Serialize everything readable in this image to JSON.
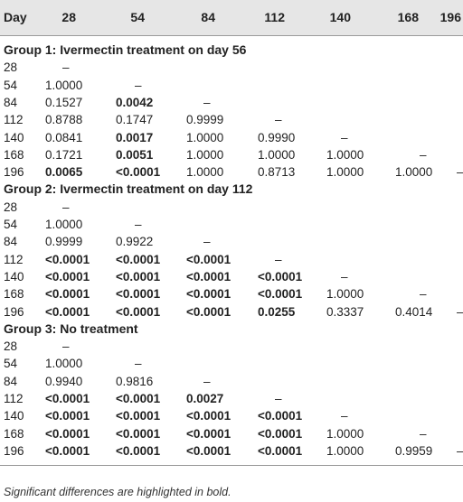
{
  "table": {
    "header": [
      "Day",
      "28",
      "54",
      "84",
      "112",
      "140",
      "168",
      "196"
    ],
    "groups": [
      {
        "title": "Group 1: Ivermectin treatment on day 56",
        "rows": [
          {
            "day": "28",
            "cells": [
              {
                "v": "–"
              }
            ]
          },
          {
            "day": "54",
            "cells": [
              {
                "v": "1.0000"
              },
              {
                "v": "–"
              }
            ]
          },
          {
            "day": "84",
            "cells": [
              {
                "v": "0.1527"
              },
              {
                "v": "0.0042",
                "b": true
              },
              {
                "v": "–"
              }
            ]
          },
          {
            "day": "112",
            "cells": [
              {
                "v": "0.8788"
              },
              {
                "v": "0.1747"
              },
              {
                "v": "0.9999"
              },
              {
                "v": "–"
              }
            ]
          },
          {
            "day": "140",
            "cells": [
              {
                "v": "0.0841"
              },
              {
                "v": "0.0017",
                "b": true
              },
              {
                "v": "1.0000"
              },
              {
                "v": "0.9990"
              },
              {
                "v": "–"
              }
            ]
          },
          {
            "day": "168",
            "cells": [
              {
                "v": "0.1721"
              },
              {
                "v": "0.0051",
                "b": true
              },
              {
                "v": "1.0000"
              },
              {
                "v": "1.0000"
              },
              {
                "v": "1.0000"
              },
              {
                "v": "–"
              }
            ]
          },
          {
            "day": "196",
            "cells": [
              {
                "v": "0.0065",
                "b": true
              },
              {
                "v": "<0.0001",
                "b": true
              },
              {
                "v": "1.0000"
              },
              {
                "v": "0.8713"
              },
              {
                "v": "1.0000"
              },
              {
                "v": "1.0000"
              },
              {
                "v": "–"
              }
            ]
          }
        ]
      },
      {
        "title": "Group 2: Ivermectin treatment on day 112",
        "rows": [
          {
            "day": "28",
            "cells": [
              {
                "v": "–"
              }
            ]
          },
          {
            "day": "54",
            "cells": [
              {
                "v": "1.0000"
              },
              {
                "v": "–"
              }
            ]
          },
          {
            "day": "84",
            "cells": [
              {
                "v": "0.9999"
              },
              {
                "v": "0.9922"
              },
              {
                "v": "–"
              }
            ]
          },
          {
            "day": "112",
            "cells": [
              {
                "v": "<0.0001",
                "b": true
              },
              {
                "v": "<0.0001",
                "b": true
              },
              {
                "v": "<0.0001",
                "b": true
              },
              {
                "v": "–"
              }
            ]
          },
          {
            "day": "140",
            "cells": [
              {
                "v": "<0.0001",
                "b": true
              },
              {
                "v": "<0.0001",
                "b": true
              },
              {
                "v": "<0.0001",
                "b": true
              },
              {
                "v": "<0.0001",
                "b": true
              },
              {
                "v": "–"
              }
            ]
          },
          {
            "day": "168",
            "cells": [
              {
                "v": "<0.0001",
                "b": true
              },
              {
                "v": "<0.0001",
                "b": true
              },
              {
                "v": "<0.0001",
                "b": true
              },
              {
                "v": "<0.0001",
                "b": true
              },
              {
                "v": "1.0000"
              },
              {
                "v": "–"
              }
            ]
          },
          {
            "day": "196",
            "cells": [
              {
                "v": "<0.0001",
                "b": true
              },
              {
                "v": "<0.0001",
                "b": true
              },
              {
                "v": "<0.0001",
                "b": true
              },
              {
                "v": "0.0255",
                "b": true
              },
              {
                "v": "0.3337"
              },
              {
                "v": "0.4014"
              },
              {
                "v": "–"
              }
            ]
          }
        ]
      },
      {
        "title": "Group 3: No treatment",
        "rows": [
          {
            "day": "28",
            "cells": [
              {
                "v": "–"
              }
            ]
          },
          {
            "day": "54",
            "cells": [
              {
                "v": "1.0000"
              },
              {
                "v": "–"
              }
            ]
          },
          {
            "day": "84",
            "cells": [
              {
                "v": "0.9940"
              },
              {
                "v": "0.9816"
              },
              {
                "v": "–"
              }
            ]
          },
          {
            "day": "112",
            "cells": [
              {
                "v": "<0.0001",
                "b": true
              },
              {
                "v": "<0.0001",
                "b": true
              },
              {
                "v": "0.0027",
                "b": true
              },
              {
                "v": "–"
              }
            ]
          },
          {
            "day": "140",
            "cells": [
              {
                "v": "<0.0001",
                "b": true
              },
              {
                "v": "<0.0001",
                "b": true
              },
              {
                "v": "<0.0001",
                "b": true
              },
              {
                "v": "<0.0001",
                "b": true
              },
              {
                "v": "–"
              }
            ]
          },
          {
            "day": "168",
            "cells": [
              {
                "v": "<0.0001",
                "b": true
              },
              {
                "v": "<0.0001",
                "b": true
              },
              {
                "v": "<0.0001",
                "b": true
              },
              {
                "v": "<0.0001",
                "b": true
              },
              {
                "v": "1.0000"
              },
              {
                "v": "–"
              }
            ]
          },
          {
            "day": "196",
            "cells": [
              {
                "v": "<0.0001",
                "b": true
              },
              {
                "v": "<0.0001",
                "b": true
              },
              {
                "v": "<0.0001",
                "b": true
              },
              {
                "v": "<0.0001",
                "b": true
              },
              {
                "v": "1.0000"
              },
              {
                "v": "0.9959"
              },
              {
                "v": "–"
              }
            ]
          }
        ]
      }
    ],
    "footnote": "Significant differences are highlighted in bold."
  }
}
